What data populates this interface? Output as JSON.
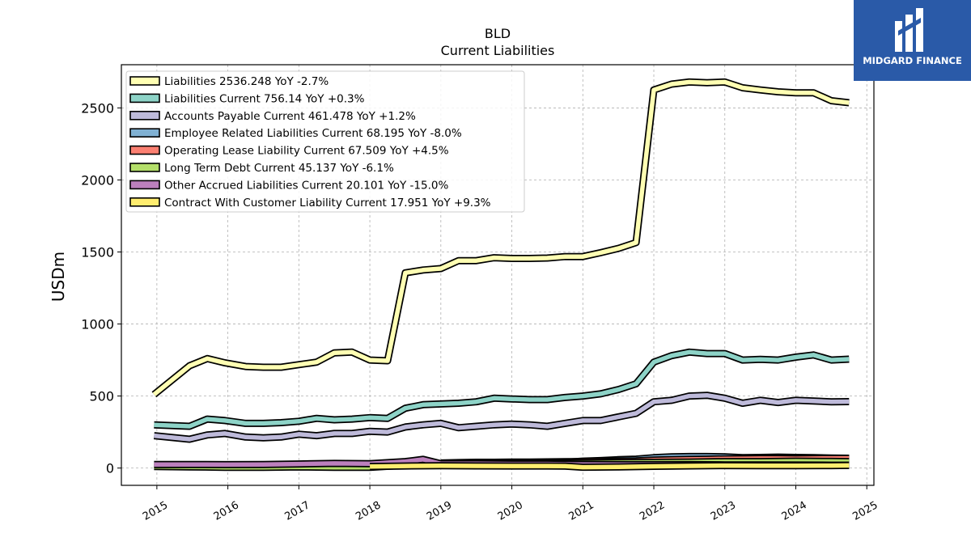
{
  "chart_data": {
    "type": "line",
    "title": "BLD",
    "subtitle": "Current  Liabilities",
    "ylabel": "USDm",
    "xlabel": "",
    "xlim": [
      2014.5,
      2025.1
    ],
    "ylim": [
      -120,
      2800
    ],
    "grid": true,
    "legend_position": "top-left",
    "yticks": [
      0,
      500,
      1000,
      1500,
      2000,
      2500
    ],
    "xticks": [
      2015,
      2016,
      2017,
      2018,
      2019,
      2020,
      2021,
      2022,
      2023,
      2024,
      2025
    ],
    "series": [
      {
        "name": "Liabilities",
        "legend": "Liabilities  2536.248 YoY -2.7%",
        "color": "#ffffb3",
        "x": [
          2014.96,
          2015.46,
          2015.71,
          2015.96,
          2016.25,
          2016.5,
          2016.75,
          2017.0,
          2017.25,
          2017.5,
          2017.75,
          2018.0,
          2018.25,
          2018.5,
          2018.75,
          2019.0,
          2019.25,
          2019.5,
          2019.75,
          2020.0,
          2020.25,
          2020.5,
          2020.75,
          2021.0,
          2021.25,
          2021.5,
          2021.75,
          2022.0,
          2022.25,
          2022.5,
          2022.75,
          2023.0,
          2023.25,
          2023.5,
          2023.75,
          2024.0,
          2024.25,
          2024.5,
          2024.75
        ],
        "values": [
          510,
          710,
          760,
          730,
          705,
          700,
          700,
          718,
          735,
          800,
          805,
          750,
          745,
          1355,
          1375,
          1385,
          1440,
          1440,
          1460,
          1455,
          1455,
          1458,
          1468,
          1468,
          1495,
          1525,
          1565,
          2625,
          2665,
          2680,
          2675,
          2680,
          2640,
          2625,
          2612,
          2605,
          2605,
          2550,
          2536
        ]
      },
      {
        "name": "Liabilities Current",
        "legend": "Liabilities Current  756.14 YoY +0.3%",
        "color": "#8dd3c7",
        "x": [
          2014.96,
          2015.46,
          2015.71,
          2015.96,
          2016.25,
          2016.5,
          2016.75,
          2017.0,
          2017.25,
          2017.5,
          2017.75,
          2018.0,
          2018.25,
          2018.5,
          2018.75,
          2019.0,
          2019.25,
          2019.5,
          2019.75,
          2020.0,
          2020.25,
          2020.5,
          2020.75,
          2021.0,
          2021.25,
          2021.5,
          2021.75,
          2022.0,
          2022.25,
          2022.5,
          2022.75,
          2023.0,
          2023.25,
          2023.5,
          2023.75,
          2024.0,
          2024.25,
          2024.5,
          2024.75
        ],
        "values": [
          300,
          290,
          340,
          330,
          310,
          310,
          315,
          325,
          345,
          335,
          340,
          350,
          345,
          415,
          440,
          445,
          450,
          460,
          485,
          480,
          475,
          475,
          490,
          500,
          515,
          545,
          585,
          735,
          780,
          805,
          795,
          795,
          750,
          755,
          750,
          770,
          785,
          750,
          756
        ]
      },
      {
        "name": "Accounts Payable Current",
        "legend": "Accounts Payable Current  461.478 YoY +1.2%",
        "color": "#bebada",
        "x": [
          2014.96,
          2015.46,
          2015.71,
          2015.96,
          2016.25,
          2016.5,
          2016.75,
          2017.0,
          2017.25,
          2017.5,
          2017.75,
          2018.0,
          2018.25,
          2018.5,
          2018.75,
          2019.0,
          2019.25,
          2019.5,
          2019.75,
          2020.0,
          2020.25,
          2020.5,
          2020.75,
          2021.0,
          2021.25,
          2021.5,
          2021.75,
          2022.0,
          2022.25,
          2022.5,
          2022.75,
          2023.0,
          2023.25,
          2023.5,
          2023.75,
          2024.0,
          2024.25,
          2024.5,
          2024.75
        ],
        "values": [
          225,
          200,
          230,
          240,
          215,
          210,
          215,
          235,
          225,
          240,
          240,
          255,
          250,
          285,
          300,
          310,
          280,
          290,
          300,
          305,
          300,
          290,
          310,
          330,
          330,
          355,
          380,
          460,
          470,
          500,
          505,
          485,
          450,
          470,
          455,
          470,
          465,
          460,
          461
        ]
      },
      {
        "name": "Employee Related Liabilities Current",
        "legend": "Employee Related Liabilities Current  68.195 YoY -8.0%",
        "color": "#80b1d3",
        "x": [
          2020.75,
          2021.0,
          2021.25,
          2021.5,
          2021.75,
          2022.0,
          2022.25,
          2022.5,
          2022.75,
          2023.0,
          2023.25,
          2023.5,
          2023.75,
          2024.0,
          2024.25,
          2024.5,
          2024.75
        ],
        "values": [
          40,
          48,
          52,
          58,
          62,
          72,
          78,
          80,
          80,
          78,
          72,
          74,
          76,
          74,
          72,
          70,
          68
        ]
      },
      {
        "name": "Operating Lease Liability Current",
        "legend": "Operating Lease Liability Current  67.509 YoY +4.5%",
        "color": "#fb8072",
        "x": [
          2019.0,
          2019.25,
          2019.5,
          2019.75,
          2020.0,
          2020.25,
          2020.5,
          2020.75,
          2021.0,
          2021.25,
          2021.5,
          2021.75,
          2022.0,
          2022.25,
          2022.5,
          2022.75,
          2023.0,
          2023.25,
          2023.5,
          2023.75,
          2024.0,
          2024.25,
          2024.5,
          2024.75
        ],
        "values": [
          35,
          38,
          40,
          40,
          42,
          42,
          43,
          44,
          45,
          46,
          48,
          50,
          55,
          58,
          60,
          62,
          64,
          65,
          66,
          66,
          65,
          66,
          67,
          67.5
        ]
      },
      {
        "name": "Long Term Debt Current",
        "legend": "Long Term Debt Current  45.137 YoY -6.1%",
        "color": "#b3de69",
        "x": [
          2014.96,
          2015.46,
          2015.96,
          2016.5,
          2017.0,
          2017.5,
          2018.0,
          2018.5,
          2019.0,
          2019.5,
          2020.0,
          2020.5,
          2021.0,
          2021.5,
          2022.0,
          2022.5,
          2023.0,
          2023.5,
          2024.0,
          2024.5,
          2024.75
        ],
        "values": [
          10,
          8,
          5,
          5,
          8,
          5,
          5,
          20,
          30,
          35,
          35,
          35,
          35,
          38,
          40,
          42,
          45,
          45,
          48,
          46,
          45
        ]
      },
      {
        "name": "Other Accrued Liabilities Current",
        "legend": "Other Accrued Liabilities Current  20.101 YoY -15.0%",
        "color": "#bc80bd",
        "x": [
          2014.96,
          2015.46,
          2015.96,
          2016.5,
          2017.0,
          2017.5,
          2018.0,
          2018.5,
          2018.75,
          2019.0,
          2019.5,
          2020.0,
          2020.5,
          2021.0,
          2021.5,
          2022.0,
          2022.5,
          2023.0,
          2023.5,
          2024.0,
          2024.5,
          2024.75
        ],
        "values": [
          25,
          25,
          24,
          25,
          28,
          32,
          30,
          45,
          60,
          30,
          30,
          28,
          28,
          25,
          24,
          24,
          24,
          22,
          22,
          21,
          20,
          20.1
        ]
      },
      {
        "name": "Contract With Customer Liability Current",
        "legend": "Contract With Customer Liability Current  17.951 YoY +9.3%",
        "color": "#ffed6f",
        "x": [
          2018.0,
          2018.5,
          2019.0,
          2019.5,
          2020.0,
          2020.5,
          2020.75,
          2021.0,
          2021.5,
          2022.0,
          2022.5,
          2023.0,
          2023.5,
          2024.0,
          2024.5,
          2024.75
        ],
        "values": [
          10,
          14,
          16,
          15,
          14,
          14,
          13,
          6,
          8,
          12,
          15,
          17,
          16,
          16,
          17,
          18
        ]
      }
    ]
  },
  "logo": {
    "text": "MIDGARD FINANCE"
  }
}
